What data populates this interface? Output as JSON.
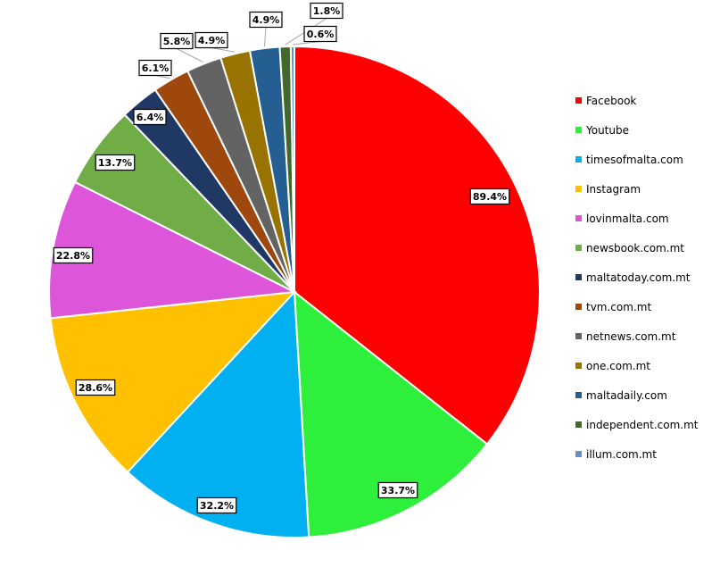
{
  "chart_data": {
    "type": "pie",
    "title": "",
    "start": "top, clockwise",
    "legend_position": "right",
    "categories": [
      "Facebook",
      "Youtube",
      "timesofmalta.com",
      "Instagram",
      "lovinmalta.com",
      "newsbook.com.mt",
      "maltatoday.com.mt",
      "tvm.com.mt",
      "netnews.com.mt",
      "one.com.mt",
      "maltadaily.com",
      "independent.com.mt",
      "illum.com.mt"
    ],
    "values": [
      89.4,
      33.7,
      32.2,
      28.6,
      22.8,
      13.7,
      6.4,
      6.1,
      5.8,
      4.9,
      4.9,
      1.8,
      0.6
    ],
    "labels": [
      "89.4%",
      "33.7%",
      "32.2%",
      "28.6%",
      "22.8%",
      "13.7%",
      "6.4%",
      "6.1%",
      "5.8%",
      "4.9%",
      "4.9%",
      "1.8%",
      "0.6%"
    ],
    "colors": [
      "#FF0000",
      "#2EF03C",
      "#00B0F0",
      "#FFC000",
      "#DD55D8",
      "#70AD47",
      "#203864",
      "#9E480E",
      "#636363",
      "#997300",
      "#255E91",
      "#43682B",
      "#698ED0"
    ]
  }
}
